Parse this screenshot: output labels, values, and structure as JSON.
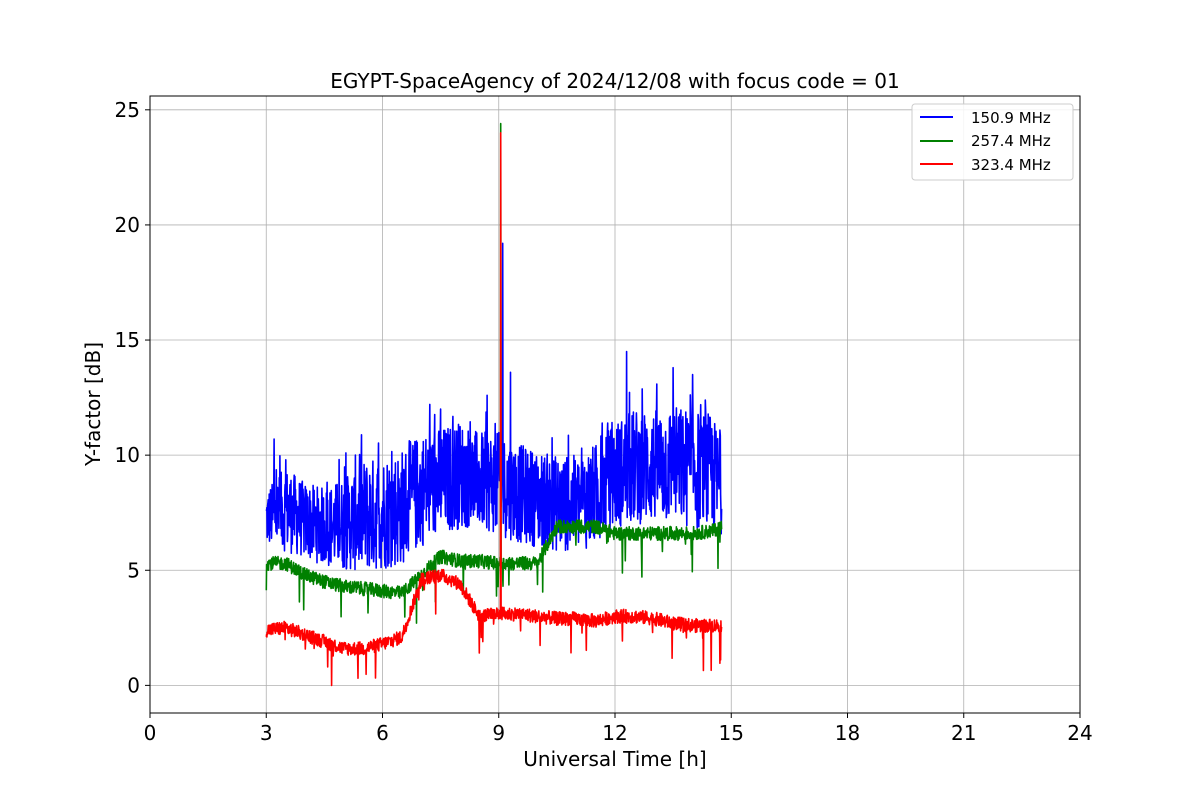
{
  "chart_data": {
    "type": "line",
    "title": "EGYPT-SpaceAgency of 2024/12/08 with focus code = 01",
    "xlabel": "Universal Time [h]",
    "ylabel": "Y-factor [dB]",
    "xlim": [
      0,
      24
    ],
    "ylim": [
      -1.2,
      25.6
    ],
    "xticks": [
      "0",
      "3",
      "6",
      "9",
      "12",
      "15",
      "18",
      "21",
      "24"
    ],
    "yticks": [
      "0",
      "5",
      "10",
      "15",
      "20",
      "25"
    ],
    "grid": true,
    "legend_position": "top-right",
    "series": [
      {
        "name": "150.9 MHz",
        "color": "#0000ff",
        "x": [
          3.0,
          3.5,
          4.0,
          4.5,
          5.0,
          5.5,
          6.0,
          6.5,
          7.0,
          7.5,
          8.0,
          8.5,
          9.0,
          9.5,
          10.0,
          10.5,
          11.0,
          11.5,
          12.0,
          12.5,
          13.0,
          13.5,
          14.0,
          14.5,
          14.75
        ],
        "y_low": [
          6.0,
          5.8,
          5.5,
          5.2,
          5.0,
          4.9,
          5.0,
          5.2,
          6.0,
          6.5,
          6.8,
          6.8,
          6.5,
          6.2,
          6.0,
          5.8,
          5.8,
          6.0,
          6.8,
          7.0,
          7.0,
          7.0,
          6.8,
          6.5,
          6.5
        ],
        "y_high": [
          8.5,
          9.5,
          8.8,
          8.6,
          9.0,
          9.8,
          10.0,
          10.3,
          11.0,
          11.2,
          11.5,
          11.0,
          11.0,
          10.5,
          10.2,
          10.0,
          10.0,
          10.5,
          11.5,
          12.0,
          12.0,
          12.2,
          12.0,
          11.8,
          10.8
        ],
        "peaks": [
          [
            3.2,
            10.7
          ],
          [
            5.3,
            10.0
          ],
          [
            7.5,
            12.0
          ],
          [
            8.7,
            12.6
          ],
          [
            9.1,
            19.2
          ],
          [
            9.3,
            13.6
          ],
          [
            12.3,
            14.5
          ],
          [
            13.5,
            13.8
          ],
          [
            14.0,
            13.5
          ]
        ]
      },
      {
        "name": "257.4 MHz",
        "color": "#008000",
        "x": [
          3.0,
          3.5,
          4.0,
          4.5,
          5.0,
          5.5,
          6.0,
          6.5,
          7.0,
          7.5,
          8.0,
          8.5,
          9.0,
          9.5,
          10.0,
          10.5,
          11.0,
          11.5,
          12.0,
          12.5,
          13.0,
          13.5,
          14.0,
          14.5,
          14.75
        ],
        "y": [
          5.3,
          5.3,
          4.8,
          4.5,
          4.3,
          4.2,
          4.1,
          4.0,
          4.8,
          5.6,
          5.4,
          5.4,
          5.3,
          5.3,
          5.3,
          6.9,
          6.9,
          6.9,
          6.6,
          6.6,
          6.6,
          6.6,
          6.6,
          6.7,
          6.9
        ],
        "peaks": [
          [
            9.05,
            24.4
          ]
        ]
      },
      {
        "name": "323.4 MHz",
        "color": "#ff0000",
        "x": [
          3.0,
          3.5,
          4.0,
          4.5,
          5.0,
          5.5,
          6.0,
          6.5,
          7.0,
          7.5,
          8.0,
          8.5,
          9.0,
          9.5,
          10.0,
          10.5,
          11.0,
          11.5,
          12.0,
          12.5,
          13.0,
          13.5,
          14.0,
          14.5,
          14.75
        ],
        "y": [
          2.4,
          2.5,
          2.2,
          1.9,
          1.6,
          1.6,
          1.8,
          2.1,
          4.6,
          4.8,
          4.4,
          3.0,
          3.1,
          3.1,
          3.0,
          2.9,
          2.9,
          2.8,
          3.0,
          3.0,
          2.9,
          2.7,
          2.6,
          2.6,
          2.6
        ],
        "peaks": [
          [
            9.05,
            24.0
          ]
        ]
      }
    ]
  }
}
